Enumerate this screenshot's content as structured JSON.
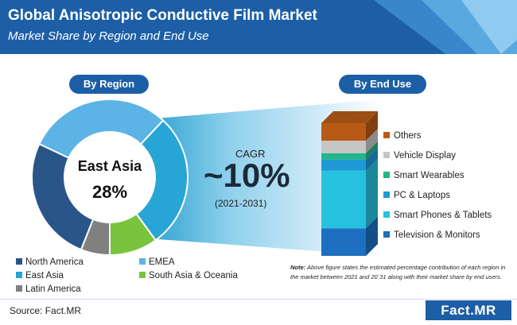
{
  "header": {
    "title": "Global Anisotropic Conductive Film Market",
    "subtitle": "Market Share by Region and End Use"
  },
  "region_label": "By Region",
  "enduse_label": "By End Use",
  "cagr": {
    "label": "CAGR",
    "value": "~10%",
    "period": "(2021-2031)"
  },
  "donut_center": {
    "name": "East Asia",
    "value": "28%"
  },
  "colors": {
    "header_bg": "#1d5fa6",
    "pill_bg": "#1d5fa6",
    "north_america": "#2a5588",
    "emea": "#5cb3e6",
    "east_asia": "#27a5d4",
    "south_asia_oceania": "#78c43c",
    "latin_america": "#808080"
  },
  "chart_data": [
    {
      "type": "pie",
      "title": "By Region",
      "slices": [
        {
          "label": "EMEA",
          "value": 30,
          "color": "#5cb3e6"
        },
        {
          "label": "East Asia",
          "value": 28,
          "color": "#27a5d4"
        },
        {
          "label": "South Asia & Oceania",
          "value": 10,
          "color": "#78c43c"
        },
        {
          "label": "Latin America",
          "value": 6,
          "color": "#808080"
        },
        {
          "label": "North America",
          "value": 26,
          "color": "#2a5588"
        }
      ]
    },
    {
      "type": "bar",
      "title": "By End Use",
      "stacked": true,
      "segments": [
        {
          "label": "Television & Monitors",
          "value": 22,
          "color": "#1d6fbf"
        },
        {
          "label": "Smart Phones & Tablets",
          "value": 46,
          "color": "#27c1e0"
        },
        {
          "label": "PC & Laptops",
          "value": 9,
          "color": "#1e9ad6"
        },
        {
          "label": "Smart Wearables",
          "value": 5,
          "color": "#22b58a"
        },
        {
          "label": "Vehicle Display",
          "value": 10,
          "color": "#c6c6c6"
        },
        {
          "label": "Others",
          "value": 14,
          "color": "#b85a17"
        }
      ]
    }
  ],
  "region_legend": [
    {
      "label": "North America",
      "color": "#2a5588"
    },
    {
      "label": "EMEA",
      "color": "#5cb3e6"
    },
    {
      "label": "East Asia",
      "color": "#27a5d4"
    },
    {
      "label": "South Asia & Oceania",
      "color": "#78c43c"
    },
    {
      "label": "Latin America",
      "color": "#808080"
    }
  ],
  "note": {
    "prefix": "Note:",
    "text": " Above figure states the estimated percentage contribution of each region in the market between 2021 and 20`31 along with their market share by end users."
  },
  "source": "Source: Fact.MR",
  "logo": "Fact.MR"
}
